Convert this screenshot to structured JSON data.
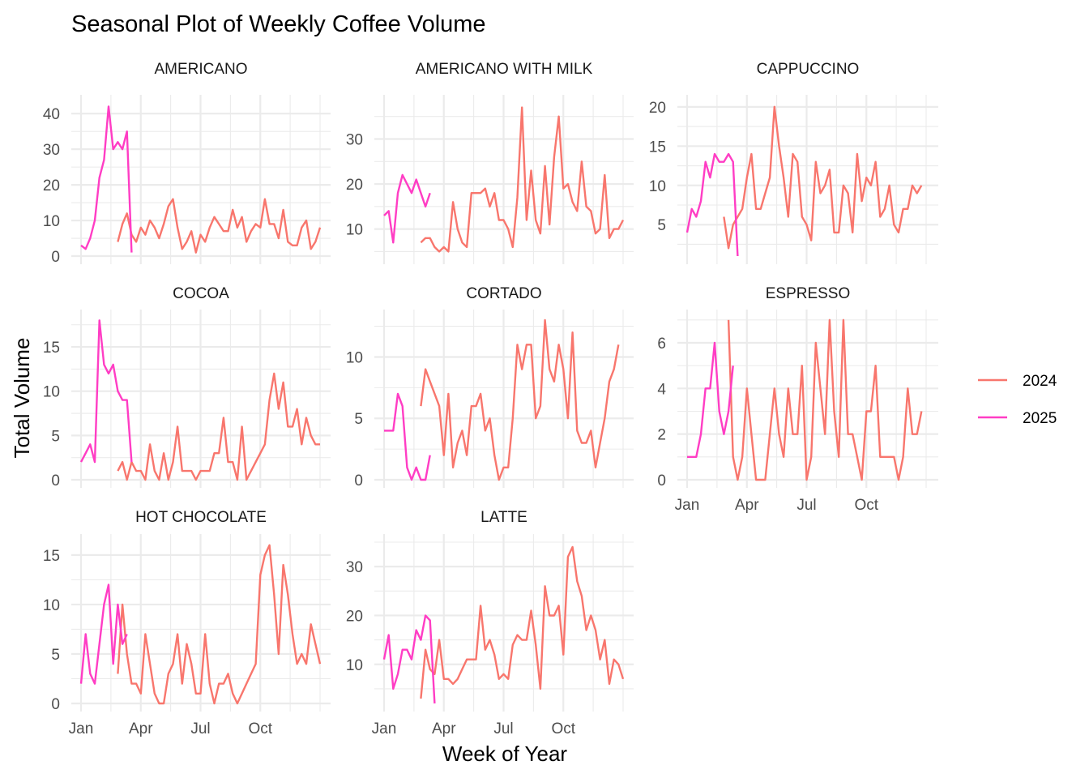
{
  "chart_data": {
    "type": "line",
    "title": "Seasonal Plot of Weekly Coffee Volume",
    "xlabel": "Week of Year",
    "ylabel": "Total Volume",
    "x_tick_labels": [
      "Jan",
      "Apr",
      "Jul",
      "Oct"
    ],
    "x_unit": "week",
    "x_range": [
      1,
      53
    ],
    "grid": true,
    "legend": {
      "placement": "right",
      "entries": [
        {
          "name": "2024",
          "color": "#F8766D"
        },
        {
          "name": "2025",
          "color": "#FF3DC4"
        }
      ]
    },
    "facets": [
      {
        "name": "AMERICANO",
        "ylim": [
          0,
          43
        ],
        "y_ticks": [
          0,
          10,
          20,
          30,
          40
        ],
        "series": [
          {
            "name": "2024",
            "start_week": 9,
            "values": [
              4,
              9,
              12,
              6,
              4,
              8,
              6,
              10,
              8,
              5,
              9,
              14,
              16,
              8,
              2,
              4,
              7,
              1,
              6,
              4,
              8,
              11,
              9,
              7,
              7,
              13,
              8,
              11,
              4,
              7,
              9,
              8,
              16,
              9,
              9,
              5,
              13,
              4,
              3,
              3,
              8,
              10,
              2,
              4,
              8
            ]
          },
          {
            "name": "2025",
            "start_week": 1,
            "values": [
              3,
              2,
              5,
              10,
              22,
              27,
              42,
              30,
              32,
              30,
              35,
              1
            ]
          }
        ]
      },
      {
        "name": "AMERICANO WITH MILK",
        "ylim": [
          4,
          38
        ],
        "y_ticks": [
          10,
          20,
          30
        ],
        "series": [
          {
            "name": "2024",
            "start_week": 9,
            "values": [
              7,
              8,
              8,
              6,
              5,
              6,
              5,
              16,
              10,
              7,
              6,
              18,
              18,
              18,
              19,
              15,
              18,
              12,
              12,
              10,
              6,
              17,
              37,
              12,
              23,
              12,
              9,
              24,
              11,
              26,
              35,
              19,
              20,
              16,
              14,
              25,
              15,
              14,
              9,
              10,
              22,
              8,
              10,
              10,
              12
            ]
          },
          {
            "name": "2025",
            "start_week": 1,
            "values": [
              13,
              14,
              7,
              18,
              22,
              20,
              18,
              21,
              18,
              15,
              18
            ]
          }
        ]
      },
      {
        "name": "CAPPUCCINO",
        "ylim": [
          1,
          20.5
        ],
        "y_ticks": [
          5,
          10,
          15,
          20
        ],
        "series": [
          {
            "name": "2024",
            "start_week": 9,
            "values": [
              6,
              2,
              5,
              6,
              7,
              11,
              14,
              7,
              7,
              9,
              11,
              20,
              15,
              11,
              6,
              14,
              13,
              6,
              5,
              3,
              13,
              9,
              10,
              12,
              4,
              4,
              10,
              9,
              4,
              14,
              8,
              11,
              10,
              13,
              6,
              7,
              10,
              5,
              4,
              7,
              7,
              10,
              9,
              10
            ]
          },
          {
            "name": "2025",
            "start_week": 1,
            "values": [
              4,
              7,
              6,
              8,
              13,
              11,
              14,
              13,
              13,
              14,
              13,
              1
            ]
          }
        ]
      },
      {
        "name": "COCOA",
        "ylim": [
          0,
          18.3
        ],
        "y_ticks": [
          0,
          5,
          10,
          15
        ],
        "series": [
          {
            "name": "2024",
            "start_week": 9,
            "values": [
              1,
              2,
              0,
              2,
              1,
              1,
              0,
              4,
              1,
              0,
              3,
              0,
              2,
              6,
              1,
              1,
              1,
              0,
              1,
              1,
              1,
              3,
              3,
              7,
              2,
              2,
              0,
              6,
              0,
              1,
              2,
              3,
              4,
              9,
              12,
              8,
              11,
              6,
              6,
              8,
              4,
              7,
              5,
              4,
              4
            ]
          },
          {
            "name": "2025",
            "start_week": 1,
            "values": [
              2,
              3,
              4,
              2,
              18,
              13,
              12,
              13,
              10,
              9,
              9,
              2
            ]
          }
        ]
      },
      {
        "name": "CORTADO",
        "ylim": [
          0,
          13.2
        ],
        "y_ticks": [
          0,
          5,
          10
        ],
        "series": [
          {
            "name": "2024",
            "start_week": 9,
            "values": [
              6,
              9,
              8,
              7,
              6,
              2,
              7,
              1,
              3,
              4,
              2,
              6,
              6,
              7,
              4,
              5,
              2,
              0,
              1,
              1,
              5,
              11,
              9,
              11,
              11,
              5,
              6,
              13,
              9,
              8,
              11,
              9,
              5,
              12,
              4,
              3,
              3,
              4,
              1,
              3,
              5,
              8,
              9,
              11
            ]
          },
          {
            "name": "2025",
            "start_week": 1,
            "values": [
              4,
              4,
              4,
              7,
              6,
              1,
              0,
              1,
              0,
              0,
              2
            ]
          }
        ]
      },
      {
        "name": "ESPRESSO",
        "ylim": [
          0,
          7.1
        ],
        "y_ticks": [
          0,
          2,
          4,
          6
        ],
        "series": [
          {
            "name": "2024",
            "start_week": 10,
            "values": [
              7,
              1,
              0,
              1,
              4,
              2,
              0,
              0,
              0,
              2,
              4,
              2,
              1,
              4,
              2,
              2,
              5,
              0,
              1,
              6,
              4,
              2,
              7,
              3,
              1,
              7,
              2,
              2,
              1,
              0,
              3,
              3,
              5,
              1,
              1,
              1,
              1,
              0,
              1,
              4,
              2,
              2,
              3
            ]
          },
          {
            "name": "2025",
            "start_week": 1,
            "values": [
              1,
              1,
              1,
              2,
              4,
              4,
              6,
              3,
              2,
              3,
              5
            ]
          }
        ]
      },
      {
        "name": "HOT CHOCOLATE",
        "ylim": [
          0,
          16.3
        ],
        "y_ticks": [
          0,
          5,
          10,
          15
        ],
        "series": [
          {
            "name": "2024",
            "start_week": 9,
            "values": [
              3,
              10,
              5,
              2,
              2,
              1,
              7,
              4,
              1,
              0,
              0,
              3,
              4,
              7,
              2,
              6,
              4,
              1,
              1,
              7,
              2,
              0,
              2,
              2,
              3,
              1,
              0,
              1,
              2,
              3,
              4,
              13,
              15,
              16,
              11,
              5,
              14,
              11,
              7,
              4,
              5,
              4,
              8,
              6,
              4
            ]
          },
          {
            "name": "2025",
            "start_week": 1,
            "values": [
              2,
              7,
              3,
              2,
              6,
              10,
              12,
              4,
              10,
              6,
              7
            ]
          }
        ]
      },
      {
        "name": "LATTE",
        "ylim": [
          2,
          35
        ],
        "y_ticks": [
          10,
          20,
          30
        ],
        "series": [
          {
            "name": "2024",
            "start_week": 9,
            "values": [
              3,
              13,
              9,
              8,
              15,
              7,
              7,
              6,
              7,
              9,
              11,
              11,
              11,
              22,
              13,
              15,
              12,
              7,
              8,
              7,
              14,
              16,
              15,
              15,
              21,
              14,
              5,
              26,
              20,
              20,
              22,
              12,
              32,
              34,
              27,
              24,
              17,
              20,
              17,
              11,
              15,
              6,
              11,
              10,
              7
            ]
          },
          {
            "name": "2025",
            "start_week": 1,
            "values": [
              11,
              16,
              5,
              8,
              13,
              13,
              11,
              17,
              15,
              20,
              19,
              2
            ]
          }
        ]
      }
    ]
  }
}
